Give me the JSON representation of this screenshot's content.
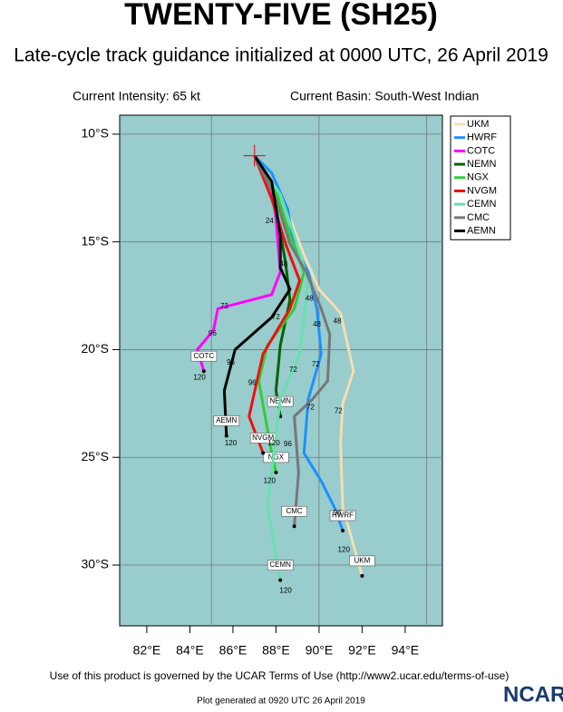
{
  "chart_data": {
    "type": "line",
    "title": "TWENTY-FIVE (SH25)",
    "subtitle": "Late-cycle track guidance initialized at 0000 UTC, 26 April 2019",
    "intensity": "Current Intensity: 65 kt",
    "basin": "Current Basin: South-West Indian",
    "footer": "Use of this product is governed by the UCAR Terms of Use (http://www2.ucar.edu/terms-of-use)",
    "generated": "Plot generated at 0920 UTC  26 April 2019",
    "logo": "NCAR",
    "background": "#99cccc",
    "xlim": [
      80.74,
      95.73
    ],
    "ylim": [
      -32.82,
      -9.12
    ],
    "xticks": [
      {
        "value": 82,
        "label": "82°E"
      },
      {
        "value": 84,
        "label": "84°E"
      },
      {
        "value": 86,
        "label": "86°E"
      },
      {
        "value": 88,
        "label": "88°E"
      },
      {
        "value": 90,
        "label": "90°E"
      },
      {
        "value": 92,
        "label": "92°E"
      },
      {
        "value": 94,
        "label": "94°E"
      }
    ],
    "yticks": [
      {
        "value": -10,
        "label": "10°S"
      },
      {
        "value": -15,
        "label": "15°S"
      },
      {
        "value": -20,
        "label": "20°S"
      },
      {
        "value": -25,
        "label": "25°S"
      },
      {
        "value": -30,
        "label": "30°S"
      }
    ],
    "xgrid": [
      85,
      90,
      95
    ],
    "grid": true,
    "legend": "top-right",
    "series": [
      {
        "name": "UKM",
        "color": "#f5deb3",
        "x": [
          87.0,
          87.8,
          88.65,
          89.3,
          90.0,
          91.0,
          91.6,
          91.1,
          91.0,
          91.1,
          92.0
        ],
        "values": [
          -11.0,
          -12.2,
          -13.9,
          -15.6,
          -17.2,
          -18.3,
          -21.0,
          -22.5,
          -24.4,
          -27.3,
          -30.5
        ]
      },
      {
        "name": "HWRF",
        "color": "#1e90ff",
        "x": [
          87.0,
          87.8,
          88.55,
          88.85,
          89.5,
          89.9,
          90.1,
          89.5,
          89.3,
          90.1,
          90.75,
          91.1
        ],
        "values": [
          -11.0,
          -11.8,
          -13.5,
          -15.2,
          -16.4,
          -18.1,
          -20.2,
          -22.3,
          -24.8,
          -26.1,
          -27.4,
          -28.4
        ]
      },
      {
        "name": "COTC",
        "color": "#ff00ff",
        "x": [
          87.0,
          87.8,
          88.0,
          88.2,
          87.8,
          85.3,
          85.1,
          84.35,
          84.65
        ],
        "values": [
          -11.0,
          -12.6,
          -13.9,
          -16.4,
          -17.45,
          -18.1,
          -19.1,
          -20.0,
          -21.0
        ]
      },
      {
        "name": "NEMN",
        "color": "#006400",
        "x": [
          87.0,
          87.8,
          88.15,
          88.45,
          88.65,
          88.2,
          88.0,
          88.2
        ],
        "values": [
          -11.0,
          -12.2,
          -14.3,
          -16.0,
          -17.7,
          -19.8,
          -21.9,
          -23.1
        ]
      },
      {
        "name": "NGX",
        "color": "#32cd32",
        "x": [
          87.0,
          88.0,
          88.65,
          89.3,
          88.85,
          87.6,
          87.2,
          87.8,
          88.0
        ],
        "values": [
          -11.0,
          -12.6,
          -14.7,
          -16.4,
          -18.1,
          -19.8,
          -21.45,
          -24.8,
          -25.7
        ]
      },
      {
        "name": "NVGM",
        "color": "#ee1111",
        "x": [
          87.0,
          87.8,
          88.45,
          89.1,
          88.65,
          87.4,
          86.75,
          87.4
        ],
        "values": [
          -11.0,
          -13.0,
          -15.1,
          -16.8,
          -18.1,
          -20.2,
          -23.1,
          -24.8
        ]
      },
      {
        "name": "CEMN",
        "color": "#66e0b0",
        "x": [
          87.0,
          88.2,
          88.85,
          89.5,
          89.1,
          88.2,
          87.8,
          87.6,
          88.2
        ],
        "values": [
          -11.0,
          -12.8,
          -14.7,
          -16.8,
          -20.2,
          -22.3,
          -25.7,
          -27.3,
          -30.7
        ]
      },
      {
        "name": "CMC",
        "color": "#777777",
        "x": [
          87.0,
          88.0,
          88.65,
          89.4,
          90.1,
          90.5,
          90.4,
          89.7,
          88.85,
          89.05,
          88.85
        ],
        "values": [
          -11.0,
          -13.0,
          -15.1,
          -16.4,
          -18.1,
          -19.3,
          -21.45,
          -22.3,
          -23.1,
          -25.7,
          -28.2
        ]
      },
      {
        "name": "AEMN",
        "color": "#000000",
        "x": [
          87.0,
          87.8,
          88.2,
          88.2,
          88.65,
          87.8,
          86.1,
          85.6,
          85.7
        ],
        "values": [
          -11.0,
          -12.2,
          -14.7,
          -16.2,
          -17.2,
          -18.5,
          -20.0,
          -21.9,
          -24.0
        ]
      }
    ],
    "hour_labels": [
      {
        "label": "120",
        "x": 84.45,
        "y": -21.3
      },
      {
        "label": "96",
        "x": 85.05,
        "y": -19.25
      },
      {
        "label": "72",
        "x": 85.6,
        "y": -18.0
      },
      {
        "label": "96",
        "x": 85.9,
        "y": -20.6
      },
      {
        "label": "120",
        "x": 85.9,
        "y": -24.35
      },
      {
        "label": "120",
        "x": 87.9,
        "y": -24.35
      },
      {
        "label": "96",
        "x": 88.55,
        "y": -24.4
      },
      {
        "label": "120",
        "x": 87.7,
        "y": -26.1
      },
      {
        "label": "120",
        "x": 88.45,
        "y": -31.2
      },
      {
        "label": "96",
        "x": 90.85,
        "y": -27.6
      },
      {
        "label": "120",
        "x": 91.15,
        "y": -29.3
      },
      {
        "label": "72",
        "x": 90.9,
        "y": -22.85
      },
      {
        "label": "72",
        "x": 89.6,
        "y": -22.7
      },
      {
        "label": "72",
        "x": 88.8,
        "y": -20.95
      },
      {
        "label": "72",
        "x": 89.85,
        "y": -20.7
      },
      {
        "label": "48",
        "x": 90.85,
        "y": -18.7
      },
      {
        "label": "48",
        "x": 89.9,
        "y": -18.85
      },
      {
        "label": "48",
        "x": 89.55,
        "y": -17.65
      },
      {
        "label": "24",
        "x": 87.7,
        "y": -14.05
      },
      {
        "label": "72",
        "x": 88.0,
        "y": -18.5
      },
      {
        "label": "96",
        "x": 86.9,
        "y": -21.55
      },
      {
        "label": "48",
        "x": 88.35,
        "y": -16.05
      }
    ]
  }
}
